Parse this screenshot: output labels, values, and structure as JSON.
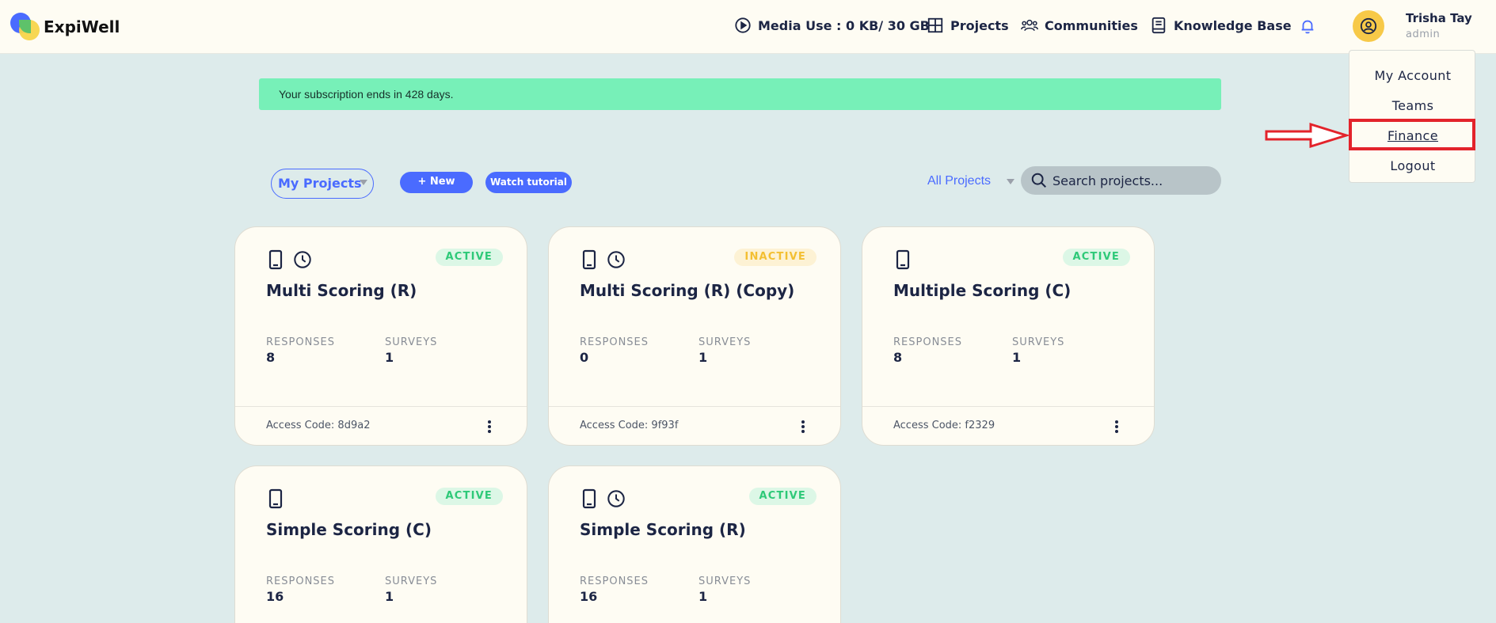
{
  "header": {
    "brand": "ExpiWell",
    "media_use": "Media Use : 0 KB/ 30 GB",
    "projects": "Projects",
    "communities": "Communities",
    "knowledge_base": "Knowledge Base",
    "user_name": "Trisha Tay",
    "user_role": "admin"
  },
  "dropdown": {
    "items": [
      "My Account",
      "Teams",
      "Finance",
      "Logout"
    ]
  },
  "banner": "Your subscription ends in 428 days.",
  "toolbar": {
    "my_projects": "My Projects",
    "new_label": "+ New",
    "tutorial_label": "Watch tutorial",
    "filter": "All Projects",
    "search_placeholder": "Search projects..."
  },
  "colors": {
    "accent": "#4a6bff",
    "active": "#2ec978",
    "inactive": "#f3bf32",
    "highlight": "#e3232b"
  },
  "cards": [
    {
      "title": "Multi Scoring (R)",
      "status": "ACTIVE",
      "responses_label": "RESPONSES",
      "responses": "8",
      "surveys_label": "SURVEYS",
      "surveys": "1",
      "access_code": "Access Code: 8d9a2"
    },
    {
      "title": "Multi Scoring (R) (Copy)",
      "status": "INACTIVE",
      "responses_label": "RESPONSES",
      "responses": "0",
      "surveys_label": "SURVEYS",
      "surveys": "1",
      "access_code": "Access Code: 9f93f"
    },
    {
      "title": "Multiple Scoring (C)",
      "status": "ACTIVE",
      "responses_label": "RESPONSES",
      "responses": "8",
      "surveys_label": "SURVEYS",
      "surveys": "1",
      "access_code": "Access Code: f2329"
    },
    {
      "title": "Simple Scoring (C)",
      "status": "ACTIVE",
      "responses_label": "RESPONSES",
      "responses": "16",
      "surveys_label": "SURVEYS",
      "surveys": "1"
    },
    {
      "title": "Simple Scoring (R)",
      "status": "ACTIVE",
      "responses_label": "RESPONSES",
      "responses": "16",
      "surveys_label": "SURVEYS",
      "surveys": "1"
    }
  ]
}
